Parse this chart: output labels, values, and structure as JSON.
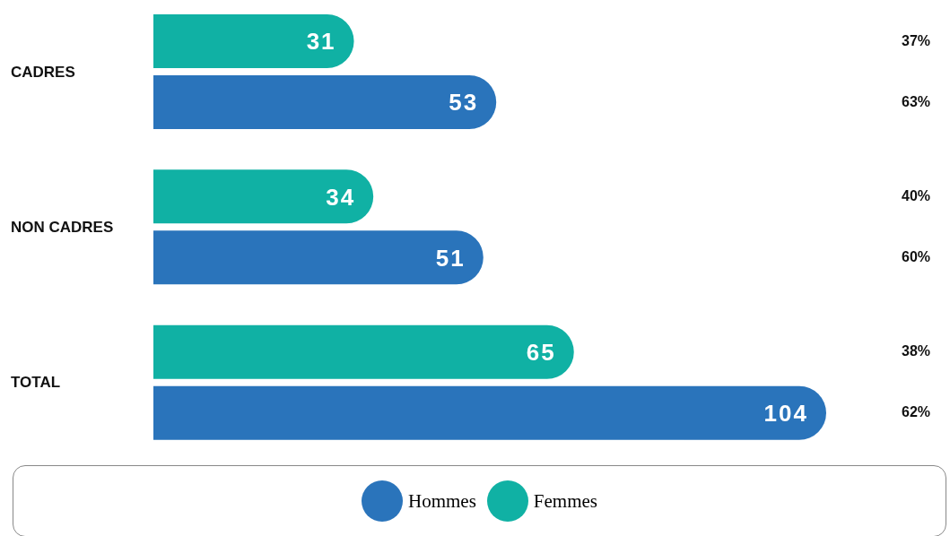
{
  "chart_data": {
    "type": "bar",
    "orientation": "horizontal",
    "categories": [
      "CADRES",
      "NON CADRES",
      "TOTAL"
    ],
    "series": [
      {
        "name": "Hommes",
        "color": "#2a74bb",
        "values": [
          53,
          51,
          104
        ]
      },
      {
        "name": "Femmes",
        "color": "#10b1a4",
        "values": [
          31,
          34,
          65
        ]
      }
    ],
    "data_labels": true,
    "legend": "bottom",
    "annotations": [
      "37%",
      "63%",
      "40%",
      "60%",
      "38%",
      "62%"
    ]
  }
}
